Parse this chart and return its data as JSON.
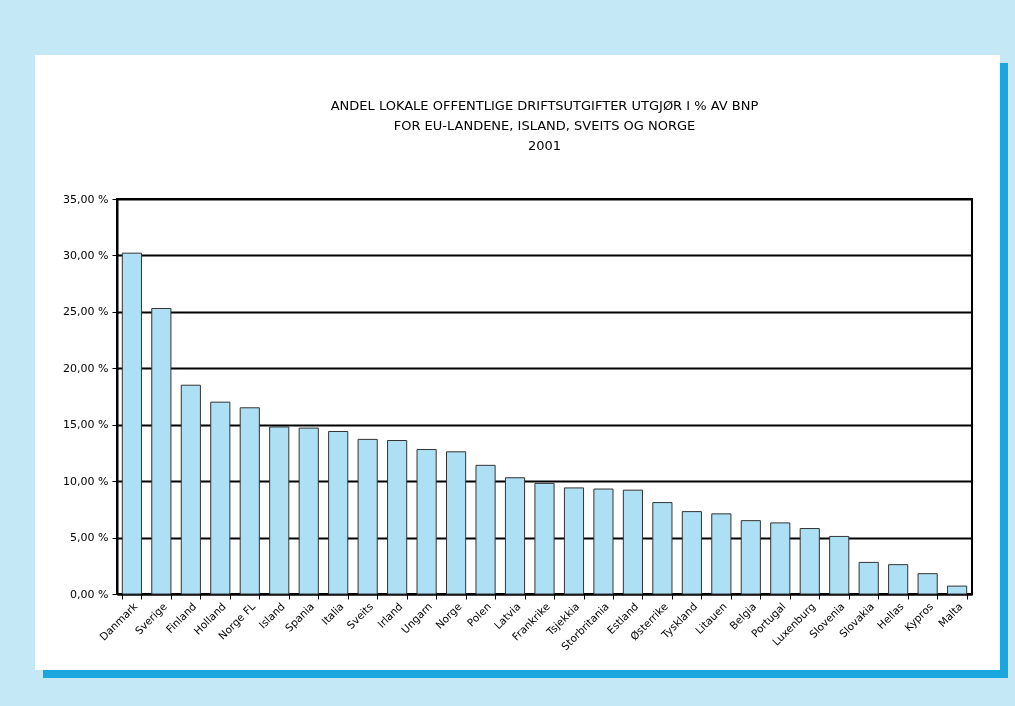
{
  "chart_data": {
    "type": "bar",
    "title": [
      "ANDEL LOKALE OFFENTLIGE DRIFTSUTGIFTER UTGJØR I % AV BNP",
      "FOR EU-LANDENE, ISLAND, SVEITS OG NORGE",
      "2001"
    ],
    "categories": [
      "Danmark",
      "Sverige",
      "Finland",
      "Holland",
      "Norge FL",
      "Island",
      "Spania",
      "Italia",
      "Sveits",
      "Irland",
      "Ungarn",
      "Norge",
      "Polen",
      "Latvia",
      "Frankrike",
      "Tsjekkia",
      "Storbritania",
      "Estland",
      "Østerrike",
      "Tyskland",
      "Litauen",
      "Belgia",
      "Portugal",
      "Luxenburg",
      "Slovenia",
      "Slovakia",
      "Hellas",
      "Kypros",
      "Malta"
    ],
    "values": [
      30.2,
      25.3,
      18.5,
      17.0,
      16.5,
      14.8,
      14.7,
      14.4,
      13.7,
      13.6,
      12.8,
      12.6,
      11.4,
      10.3,
      9.8,
      9.4,
      9.3,
      9.2,
      8.1,
      7.3,
      7.1,
      6.5,
      6.3,
      5.8,
      5.1,
      2.8,
      2.6,
      1.8,
      0.7
    ],
    "color": "#aee0f5",
    "ylim": [
      0,
      35
    ],
    "yticks": [
      {
        "value": 0,
        "label": "0,00 %"
      },
      {
        "value": 5,
        "label": "5,00 %"
      },
      {
        "value": 10,
        "label": "10,00 %"
      },
      {
        "value": 15,
        "label": "15,00 %"
      },
      {
        "value": 20,
        "label": "20,00 %"
      },
      {
        "value": 25,
        "label": "25,00 %"
      },
      {
        "value": 30,
        "label": "30,00 %"
      },
      {
        "value": 35,
        "label": "35,00 %"
      }
    ],
    "grid": "y"
  }
}
